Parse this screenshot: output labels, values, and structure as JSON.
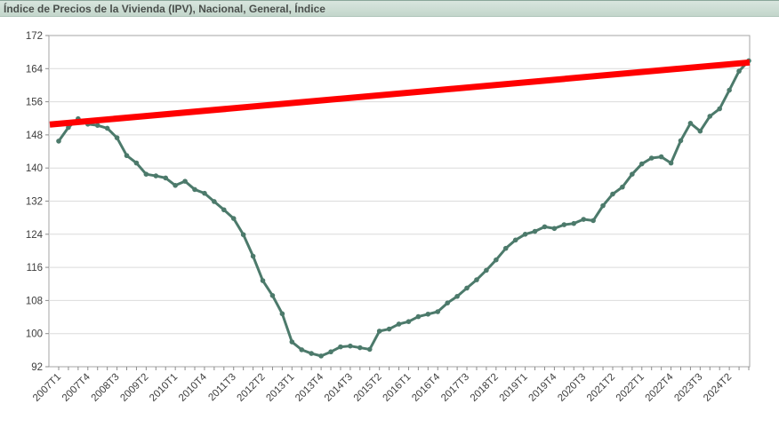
{
  "title": "Índice de Precios de la Vivienda (IPV), Nacional, General, Índice",
  "chart_data": {
    "type": "line",
    "title": "Índice de Precios de la Vivienda (IPV), Nacional, General, Índice",
    "categories": [
      "2007T1",
      "2007T2",
      "2007T3",
      "2007T4",
      "2008T1",
      "2008T2",
      "2008T3",
      "2008T4",
      "2009T1",
      "2009T2",
      "2009T3",
      "2009T4",
      "2010T1",
      "2010T2",
      "2010T3",
      "2010T4",
      "2011T1",
      "2011T2",
      "2011T3",
      "2011T4",
      "2012T1",
      "2012T2",
      "2012T3",
      "2012T4",
      "2013T1",
      "2013T2",
      "2013T3",
      "2013T4",
      "2014T1",
      "2014T2",
      "2014T3",
      "2014T4",
      "2015T1",
      "2015T2",
      "2015T3",
      "2015T4",
      "2016T1",
      "2016T2",
      "2016T3",
      "2016T4",
      "2017T1",
      "2017T2",
      "2017T3",
      "2017T4",
      "2018T1",
      "2018T2",
      "2018T3",
      "2018T4",
      "2019T1",
      "2019T2",
      "2019T3",
      "2019T4",
      "2020T1",
      "2020T2",
      "2020T3",
      "2020T4",
      "2021T1",
      "2021T2",
      "2021T3",
      "2021T4",
      "2022T1",
      "2022T2",
      "2022T3",
      "2022T4",
      "2023T1",
      "2023T2",
      "2023T3",
      "2023T4",
      "2024T1",
      "2024T2",
      "2024T3",
      "2024T4"
    ],
    "series": [
      {
        "name": "IPV Nacional General",
        "color": "#4C7A6B",
        "values": [
          146.5,
          149.8,
          151.9,
          150.6,
          150.3,
          149.6,
          147.3,
          143.0,
          141.2,
          138.5,
          138.1,
          137.6,
          135.8,
          136.8,
          134.8,
          133.9,
          131.9,
          129.9,
          127.8,
          123.9,
          118.7,
          112.8,
          109.2,
          104.8,
          98.0,
          96.1,
          95.2,
          94.6,
          95.6,
          96.8,
          97.0,
          96.6,
          96.2,
          100.6,
          101.1,
          102.3,
          102.9,
          104.1,
          104.7,
          105.3,
          107.4,
          109.0,
          111.0,
          113.0,
          115.3,
          117.8,
          120.6,
          122.6,
          124.0,
          124.7,
          125.8,
          125.4,
          126.3,
          126.6,
          127.6,
          127.3,
          130.9,
          133.7,
          135.4,
          138.5,
          141.0,
          142.4,
          142.7,
          141.2,
          146.6,
          150.8,
          148.9,
          152.5,
          154.3,
          158.8,
          163.4,
          165.9
        ]
      }
    ],
    "trend_line": {
      "name": "trend",
      "color": "#FF0000",
      "start_value": 150.5,
      "end_value": 165.5
    },
    "ylim": [
      92,
      172
    ],
    "ytick_step": 8,
    "ytick_labels": [
      "92",
      "100",
      "108",
      "116",
      "124",
      "132",
      "140",
      "148",
      "156",
      "164",
      "172"
    ],
    "xtick_label_every": 3,
    "xtick_labels_shown": [
      "2007T1",
      "2007T4",
      "2008T3",
      "2009T2",
      "2010T1",
      "2010T4",
      "2011T3",
      "2012T2",
      "2013T1",
      "2013T4",
      "2014T3",
      "2015T2",
      "2016T1",
      "2016T4",
      "2017T3",
      "2018T2",
      "2019T1",
      "2019T4",
      "2020T3",
      "2021T2",
      "2022T1",
      "2022T4",
      "2023T3",
      "2024T2"
    ],
    "grid": true,
    "legend_position": "none",
    "colors": {
      "gridline": "#DBDBDB",
      "plot_border": "#A6A6A6",
      "tick": "#8C8C8C",
      "axis_text": "#3d3d3d",
      "title_bar_bg": "#ccdcd3",
      "plot_bg": "#FFFFFF"
    }
  }
}
